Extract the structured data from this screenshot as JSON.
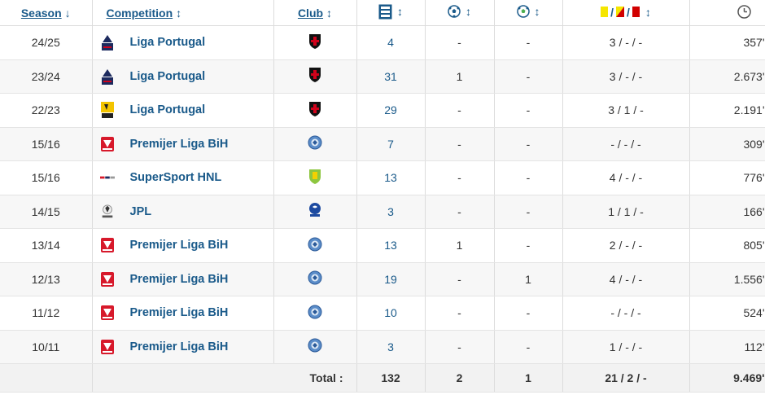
{
  "header": {
    "season": "Season",
    "competition": "Competition",
    "club": "Club",
    "season_arrow": "↓",
    "sort_arrow": "↕"
  },
  "icons": {
    "apps": "squad-icon",
    "goals": "ball-icon",
    "assists": "assist-ball-icon",
    "cards": "cards-icon",
    "minutes": "clock-icon"
  },
  "colors": {
    "link": "#1a5a8a",
    "yellow_card": "#f5e600",
    "red_card": "#d10000"
  },
  "rows": [
    {
      "season": "24/25",
      "competition": "Liga Portugal",
      "comp_logo": "liga-portugal",
      "club_logo": "shield-black",
      "apps": "4",
      "goals": "-",
      "assists": "-",
      "cards": "3 / - / -",
      "minutes": "357'"
    },
    {
      "season": "23/24",
      "competition": "Liga Portugal",
      "comp_logo": "liga-portugal",
      "club_logo": "shield-black",
      "apps": "31",
      "goals": "1",
      "assists": "-",
      "cards": "3 / - / -",
      "minutes": "2.673'"
    },
    {
      "season": "22/23",
      "competition": "Liga Portugal",
      "comp_logo": "liga-portugal-yellow",
      "club_logo": "shield-black",
      "apps": "29",
      "goals": "-",
      "assists": "-",
      "cards": "3 / 1 / -",
      "minutes": "2.191'"
    },
    {
      "season": "15/16",
      "competition": "Premijer Liga BiH",
      "comp_logo": "premijer-liga",
      "club_logo": "round-blue",
      "apps": "7",
      "goals": "-",
      "assists": "-",
      "cards": "- / - / -",
      "minutes": "309'"
    },
    {
      "season": "15/16",
      "competition": "SuperSport HNL",
      "comp_logo": "hnl",
      "club_logo": "shield-green",
      "apps": "13",
      "goals": "-",
      "assists": "-",
      "cards": "4 / - / -",
      "minutes": "776'"
    },
    {
      "season": "14/15",
      "competition": "JPL",
      "comp_logo": "jpl",
      "club_logo": "gent",
      "apps": "3",
      "goals": "-",
      "assists": "-",
      "cards": "1 / 1 / -",
      "minutes": "166'"
    },
    {
      "season": "13/14",
      "competition": "Premijer Liga BiH",
      "comp_logo": "premijer-liga",
      "club_logo": "round-blue",
      "apps": "13",
      "goals": "1",
      "assists": "-",
      "cards": "2 / - / -",
      "minutes": "805'"
    },
    {
      "season": "12/13",
      "competition": "Premijer Liga BiH",
      "comp_logo": "premijer-liga",
      "club_logo": "round-blue",
      "apps": "19",
      "goals": "-",
      "assists": "1",
      "cards": "4 / - / -",
      "minutes": "1.556'"
    },
    {
      "season": "11/12",
      "competition": "Premijer Liga BiH",
      "comp_logo": "premijer-liga",
      "club_logo": "round-blue",
      "apps": "10",
      "goals": "-",
      "assists": "-",
      "cards": "- / - / -",
      "minutes": "524'"
    },
    {
      "season": "10/11",
      "competition": "Premijer Liga BiH",
      "comp_logo": "premijer-liga",
      "club_logo": "round-blue",
      "apps": "3",
      "goals": "-",
      "assists": "-",
      "cards": "1 / - / -",
      "minutes": "112'"
    }
  ],
  "total": {
    "label": "Total :",
    "apps": "132",
    "goals": "2",
    "assists": "1",
    "cards": "21 / 2 / -",
    "minutes": "9.469'"
  }
}
